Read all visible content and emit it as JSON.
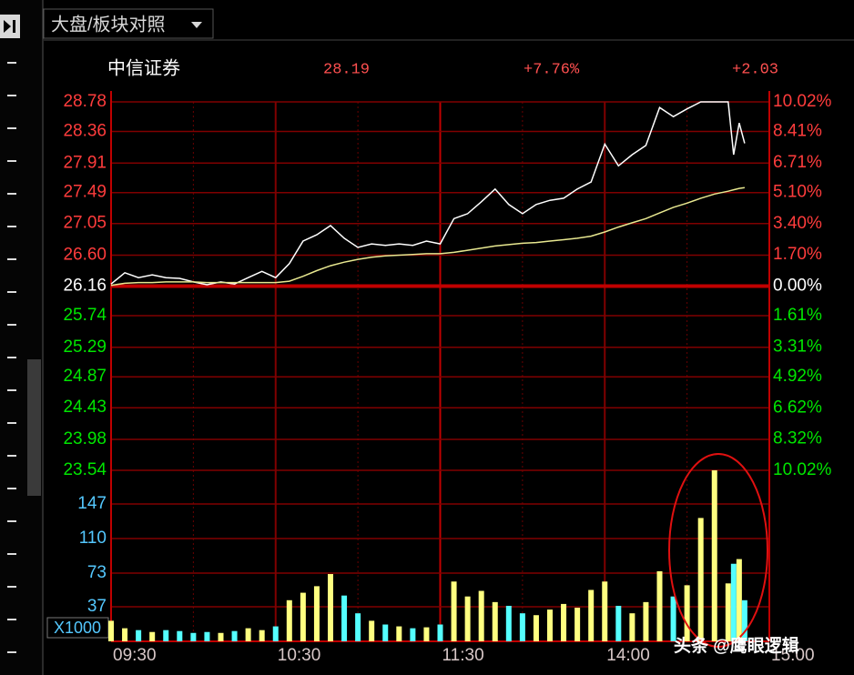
{
  "tab_title": "大盘/板块对照",
  "watermark": "头条 @鹰眼逻辑",
  "chart_data": [
    {
      "type": "line",
      "stock_name": "中信证券",
      "last_price": "28.19",
      "change_pct": "+7.76%",
      "change": "+2.03",
      "x": [
        "09:30",
        "09:35",
        "09:40",
        "09:45",
        "09:50",
        "09:55",
        "10:00",
        "10:05",
        "10:10",
        "10:15",
        "10:20",
        "10:25",
        "10:30",
        "10:35",
        "10:40",
        "10:45",
        "10:50",
        "10:55",
        "11:00",
        "11:05",
        "11:10",
        "11:15",
        "11:20",
        "11:25",
        "11:30",
        "13:05",
        "13:10",
        "13:15",
        "13:20",
        "13:25",
        "13:30",
        "13:35",
        "13:40",
        "13:45",
        "13:50",
        "13:55",
        "14:00",
        "14:05",
        "14:10",
        "14:15",
        "14:20",
        "14:25",
        "14:30",
        "14:35",
        "14:40",
        "14:45",
        "14:47",
        "14:49",
        "14:51"
      ],
      "series": [
        {
          "color": "#ffffff",
          "values": [
            26.19,
            26.35,
            26.28,
            26.32,
            26.28,
            26.27,
            26.22,
            26.18,
            26.22,
            26.19,
            26.28,
            26.37,
            26.28,
            26.48,
            26.8,
            26.89,
            27.02,
            26.84,
            26.71,
            26.76,
            26.74,
            26.76,
            26.74,
            26.8,
            26.76,
            27.12,
            27.19,
            27.36,
            27.54,
            27.32,
            27.19,
            27.32,
            27.38,
            27.41,
            27.54,
            27.64,
            28.18,
            27.87,
            28.03,
            28.16,
            28.7,
            28.57,
            28.68,
            28.78,
            28.78,
            28.78,
            28.03,
            28.48,
            28.19
          ]
        },
        {
          "color": "#e8e890",
          "values": [
            26.17,
            26.2,
            26.21,
            26.21,
            26.22,
            26.22,
            26.22,
            26.21,
            26.21,
            26.21,
            26.21,
            26.21,
            26.21,
            26.23,
            26.3,
            26.38,
            26.45,
            26.5,
            26.54,
            26.57,
            26.59,
            26.6,
            26.61,
            26.62,
            26.62,
            26.64,
            26.67,
            26.7,
            26.73,
            26.75,
            26.77,
            26.78,
            26.8,
            26.82,
            26.84,
            26.87,
            26.93,
            27.0,
            27.06,
            27.12,
            27.2,
            27.28,
            27.34,
            27.41,
            27.47,
            27.51,
            27.53,
            27.55,
            27.56
          ]
        }
      ],
      "ylim": [
        23.54,
        28.78
      ],
      "yticks": [
        28.78,
        28.36,
        27.91,
        27.49,
        27.05,
        {
          "value": 26.6,
          "label": "26.60"
        },
        26.16,
        25.74,
        25.29,
        24.87,
        24.43,
        23.98,
        23.54
      ],
      "y2lim": [
        -10.02,
        10.02
      ],
      "y2ticks": [
        {
          "value": 10.02,
          "label": "10.02%"
        },
        {
          "value": 8.41,
          "label": "8.41%"
        },
        {
          "value": 6.71,
          "label": "6.71%"
        },
        {
          "value": 5.1,
          "label": "5.10%"
        },
        {
          "value": 3.4,
          "label": "3.40%"
        },
        {
          "value": 1.7,
          "label": "1.70%"
        },
        {
          "value": 0,
          "label": "0.00%"
        },
        {
          "value": -1.61,
          "label": "1.61%"
        },
        {
          "value": -3.31,
          "label": "3.31%"
        },
        {
          "value": -4.92,
          "label": "4.92%"
        },
        {
          "value": -6.62,
          "label": "6.62%"
        },
        {
          "value": -8.32,
          "label": "8.32%"
        },
        {
          "value": -10.02,
          "label": "10.02%"
        }
      ],
      "up_color": "#ff3c3c",
      "down_color": "#00e600",
      "flat_color": "#ffffff"
    },
    {
      "type": "bar",
      "unit_label": "X1000",
      "x": [
        "09:30",
        "09:35",
        "09:40",
        "09:45",
        "09:50",
        "09:55",
        "10:00",
        "10:05",
        "10:10",
        "10:15",
        "10:20",
        "10:25",
        "10:30",
        "10:35",
        "10:40",
        "10:45",
        "10:50",
        "10:55",
        "11:00",
        "11:05",
        "11:10",
        "11:15",
        "11:20",
        "11:25",
        "11:30",
        "13:05",
        "13:10",
        "13:15",
        "13:20",
        "13:25",
        "13:30",
        "13:35",
        "13:40",
        "13:45",
        "13:50",
        "13:55",
        "14:00",
        "14:05",
        "14:10",
        "14:15",
        "14:20",
        "14:25",
        "14:30",
        "14:35",
        "14:40",
        "14:45",
        "14:47",
        "14:49",
        "14:51"
      ],
      "values": [
        22,
        14,
        12,
        10,
        12,
        11,
        9,
        10,
        9,
        11,
        14,
        12,
        16,
        44,
        52,
        59,
        72,
        49,
        30,
        22,
        18,
        16,
        14,
        15,
        18,
        64,
        48,
        54,
        42,
        38,
        30,
        28,
        34,
        40,
        36,
        55,
        64,
        38,
        30,
        42,
        75,
        48,
        60,
        132,
        183,
        62,
        83,
        88,
        44
      ],
      "up_color": "#ffff80",
      "down_color": "#54ffff",
      "ylim": [
        0,
        183
      ],
      "yticks": [
        37,
        73,
        110,
        147
      ],
      "xticks": [
        "09:30",
        "10:30",
        "11:30",
        "14:00",
        "15:00"
      ]
    }
  ]
}
